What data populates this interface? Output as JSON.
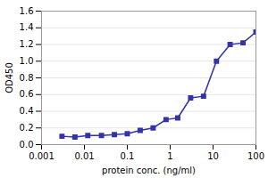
{
  "chart_data": {
    "type": "line",
    "x": [
      0.003,
      0.006,
      0.012,
      0.025,
      0.05,
      0.1,
      0.2,
      0.4,
      0.8,
      1.5,
      3,
      6,
      12,
      25,
      50,
      100
    ],
    "values": [
      0.1,
      0.09,
      0.11,
      0.11,
      0.12,
      0.13,
      0.17,
      0.2,
      0.3,
      0.32,
      0.56,
      0.58,
      1.0,
      1.2,
      1.22,
      1.35
    ],
    "color": "#3333aa",
    "marker": "square",
    "xlabel": "protein conc. (ng/ml)",
    "ylabel": "OD450",
    "log": "x",
    "xlim": [
      0.001,
      100
    ],
    "xticks": [
      0.001,
      0.01,
      0.1,
      1,
      10,
      100
    ],
    "ylim": [
      0.0,
      1.6
    ],
    "yticks": [
      {
        "value": 0,
        "label": "0.0"
      },
      0.2,
      0.4,
      0.6,
      0.8,
      {
        "value": 1,
        "label": "1.0"
      },
      1.2,
      1.4,
      1.6
    ],
    "grid": "y"
  }
}
